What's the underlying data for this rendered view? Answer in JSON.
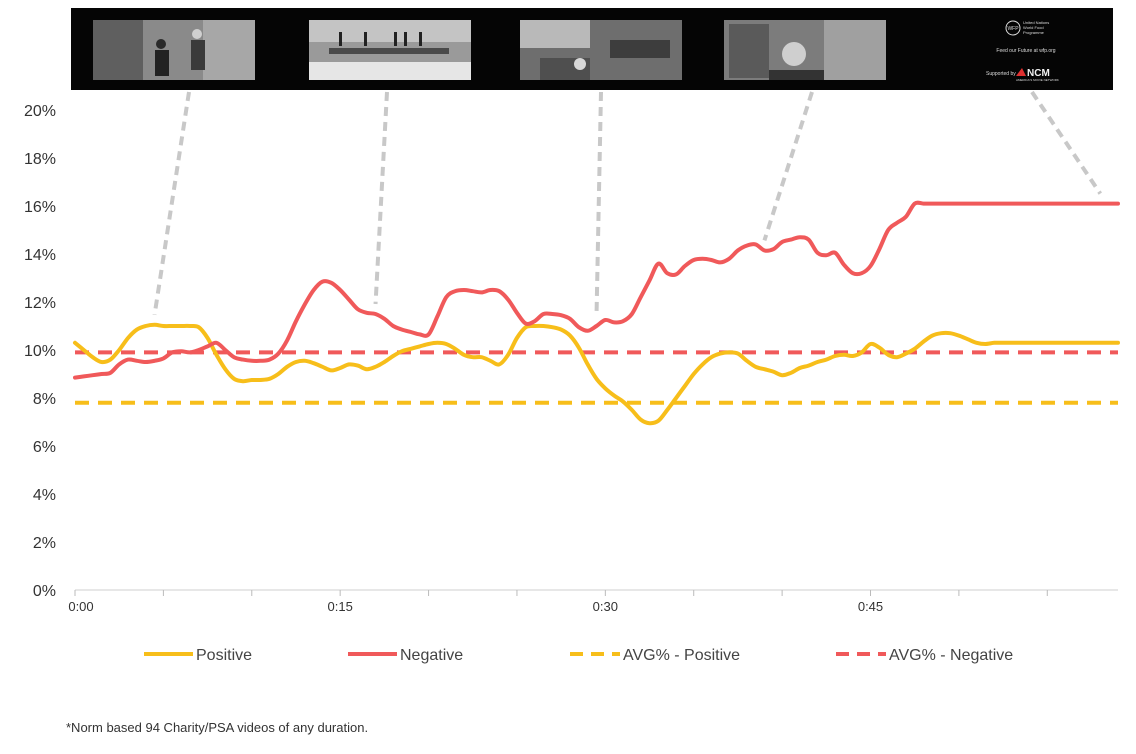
{
  "storyboard": {
    "frames": [
      {
        "icon": "frame-children-street",
        "second": 4.5
      },
      {
        "icon": "frame-ruined-bridge",
        "second": 17
      },
      {
        "icon": "frame-rubble-debris",
        "second": 29.5
      },
      {
        "icon": "frame-satellite-dish-wall",
        "second": 39
      },
      {
        "icon": "frame-end-card",
        "second": 58
      }
    ],
    "end_card": {
      "logo_text": "WFP",
      "org_lines": [
        "United Nations",
        "World Food",
        "Programme"
      ],
      "tagline": "Feed our Future at wfp.org",
      "supported_by": "Supported by",
      "sponsor_logo": "NCM",
      "sponsor_sub": "AMERICA'S MOVIE NETWORK"
    }
  },
  "chart_data": {
    "type": "line",
    "x_unit": "seconds",
    "x_ticks": [
      {
        "value": 0,
        "label": "0:00"
      },
      {
        "value": 15,
        "label": "0:15"
      },
      {
        "value": 30,
        "label": "0:30"
      },
      {
        "value": 45,
        "label": "0:45"
      }
    ],
    "x_minor_ticks": [
      5,
      10,
      20,
      25,
      35,
      40,
      50,
      55
    ],
    "xlim": [
      0,
      59
    ],
    "ylim": [
      0,
      20
    ],
    "y_ticks": [
      "0%",
      "2%",
      "4%",
      "6%",
      "8%",
      "10%",
      "12%",
      "14%",
      "16%",
      "18%",
      "20%"
    ],
    "grid": false,
    "legend_position": "bottom",
    "series": [
      {
        "name": "Positive",
        "color": "#F7BE1A",
        "style": "solid",
        "x": [
          0,
          0.5,
          1,
          1.5,
          2,
          2.5,
          3,
          3.5,
          4,
          4.5,
          5,
          5.5,
          6,
          6.5,
          7,
          7.5,
          8,
          8.5,
          9,
          9.5,
          10,
          10.5,
          11,
          11.5,
          12,
          12.5,
          13,
          13.5,
          14,
          14.5,
          15,
          15.5,
          16,
          16.5,
          17,
          17.5,
          18,
          18.5,
          19,
          19.5,
          20,
          20.5,
          21,
          21.5,
          22,
          22.5,
          23,
          23.5,
          24,
          24.5,
          25,
          25.5,
          26,
          26.5,
          27,
          27.5,
          28,
          28.5,
          29,
          29.5,
          30,
          30.5,
          31,
          31.5,
          32,
          32.5,
          33,
          33.5,
          34,
          34.5,
          35,
          35.5,
          36,
          36.5,
          37,
          37.5,
          38,
          38.5,
          39,
          39.5,
          40,
          40.5,
          41,
          41.5,
          42,
          42.5,
          43,
          43.5,
          44,
          44.5,
          45,
          45.5,
          46,
          46.5,
          47,
          47.5,
          48,
          48.5,
          49,
          49.5,
          50,
          50.5,
          51,
          51.5,
          52,
          52.5,
          53,
          53.5,
          54,
          54.5,
          55,
          55.5,
          56,
          56.5,
          57,
          57.5,
          58,
          58.5,
          59
        ],
        "values": [
          10.3,
          10.0,
          9.7,
          9.5,
          9.6,
          10.0,
          10.5,
          10.85,
          11.0,
          11.05,
          11.0,
          11.0,
          11.0,
          11.0,
          10.95,
          10.5,
          9.8,
          9.2,
          8.8,
          8.7,
          8.75,
          8.75,
          8.8,
          9.0,
          9.3,
          9.5,
          9.55,
          9.45,
          9.3,
          9.15,
          9.25,
          9.4,
          9.35,
          9.2,
          9.3,
          9.5,
          9.75,
          9.95,
          10.05,
          10.15,
          10.25,
          10.3,
          10.25,
          10.05,
          9.8,
          9.7,
          9.7,
          9.55,
          9.4,
          9.8,
          10.5,
          10.95,
          11.0,
          11.0,
          10.95,
          10.85,
          10.6,
          10.1,
          9.4,
          8.8,
          8.4,
          8.1,
          7.85,
          7.5,
          7.1,
          6.95,
          7.05,
          7.5,
          8.0,
          8.5,
          9.0,
          9.4,
          9.7,
          9.85,
          9.9,
          9.85,
          9.55,
          9.3,
          9.2,
          9.1,
          8.95,
          9.05,
          9.25,
          9.35,
          9.5,
          9.6,
          9.75,
          9.8,
          9.75,
          9.9,
          10.25,
          10.1,
          9.8,
          9.7,
          9.85,
          10.05,
          10.35,
          10.6,
          10.7,
          10.7,
          10.6,
          10.45,
          10.3,
          10.25,
          10.3,
          10.3,
          10.3,
          10.3,
          10.3,
          10.3,
          10.3,
          10.3,
          10.3,
          10.3,
          10.3,
          10.3,
          10.3,
          10.3,
          10.3
        ]
      },
      {
        "name": "Negative",
        "color": "#F0595A",
        "style": "solid",
        "x": [
          0,
          0.5,
          1,
          1.5,
          2,
          2.5,
          3,
          3.5,
          4,
          4.5,
          5,
          5.5,
          6,
          6.5,
          7,
          7.5,
          8,
          8.5,
          9,
          9.5,
          10,
          10.5,
          11,
          11.5,
          12,
          12.5,
          13,
          13.5,
          14,
          14.5,
          15,
          15.5,
          16,
          16.5,
          17,
          17.5,
          18,
          18.5,
          19,
          19.5,
          20,
          20.5,
          21,
          21.5,
          22,
          22.5,
          23,
          23.5,
          24,
          24.5,
          25,
          25.5,
          26,
          26.5,
          27,
          27.5,
          28,
          28.5,
          29,
          29.5,
          30,
          30.5,
          31,
          31.5,
          32,
          32.5,
          33,
          33.5,
          34,
          34.5,
          35,
          35.5,
          36,
          36.5,
          37,
          37.5,
          38,
          38.5,
          39,
          39.5,
          40,
          40.5,
          41,
          41.5,
          42,
          42.5,
          43,
          43.5,
          44,
          44.5,
          45,
          45.5,
          46,
          46.5,
          47,
          47.5,
          48,
          48.5,
          49,
          49.5,
          50,
          50.5,
          51,
          51.5,
          52,
          52.5,
          53,
          53.5,
          54,
          54.5,
          55,
          55.5,
          56,
          56.5,
          57,
          57.5,
          58,
          58.5,
          59
        ],
        "values": [
          8.85,
          8.9,
          8.95,
          9.0,
          9.05,
          9.4,
          9.6,
          9.55,
          9.5,
          9.55,
          9.65,
          9.9,
          9.95,
          9.9,
          10.0,
          10.15,
          10.3,
          10.0,
          9.7,
          9.6,
          9.55,
          9.55,
          9.6,
          9.85,
          10.4,
          11.2,
          11.9,
          12.5,
          12.85,
          12.8,
          12.5,
          12.1,
          11.7,
          11.55,
          11.5,
          11.3,
          11.0,
          10.85,
          10.75,
          10.65,
          10.65,
          11.4,
          12.2,
          12.45,
          12.5,
          12.45,
          12.4,
          12.5,
          12.45,
          12.1,
          11.55,
          11.1,
          11.2,
          11.5,
          11.5,
          11.45,
          11.3,
          10.95,
          10.8,
          11.0,
          11.25,
          11.15,
          11.2,
          11.5,
          12.2,
          12.9,
          13.6,
          13.2,
          13.15,
          13.5,
          13.75,
          13.8,
          13.75,
          13.65,
          13.8,
          14.15,
          14.35,
          14.4,
          14.15,
          14.2,
          14.5,
          14.6,
          14.7,
          14.6,
          14.05,
          13.95,
          14.05,
          13.55,
          13.2,
          13.2,
          13.5,
          14.2,
          15.0,
          15.3,
          15.55,
          16.1,
          16.1,
          16.1,
          16.1,
          16.1,
          16.1,
          16.1,
          16.1,
          16.1,
          16.1,
          16.1,
          16.1,
          16.1,
          16.1,
          16.1,
          16.1,
          16.1,
          16.1,
          16.1,
          16.1,
          16.1,
          16.1,
          16.1,
          16.1
        ]
      },
      {
        "name": "AVG% - Positive",
        "color": "#F7BE1A",
        "style": "dashed",
        "x": [
          0,
          59
        ],
        "values": [
          7.8,
          7.8
        ]
      },
      {
        "name": "AVG% - Negative",
        "color": "#F0595A",
        "style": "dashed",
        "x": [
          0,
          59
        ],
        "values": [
          9.9,
          9.9
        ]
      }
    ]
  },
  "footnote": "*Norm based 94 Charity/PSA videos of any duration."
}
